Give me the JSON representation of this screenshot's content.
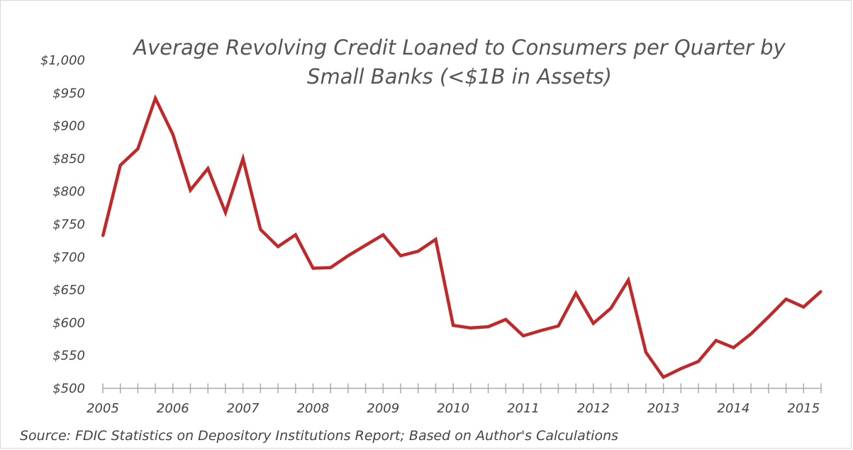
{
  "chart_data": {
    "type": "line",
    "title_lines": [
      "Average Revolving Credit Loaned to Consumers per Quarter by",
      "Small Banks (<$1B in Assets)"
    ],
    "source": "Source: FDIC Statistics on Depository Institutions Report; Based on Author's Calculations",
    "xlabel": "",
    "ylabel": "",
    "ylim": [
      500,
      1000
    ],
    "xlim": [
      2005.0,
      2015.25
    ],
    "y_tick_values": [
      500,
      550,
      600,
      650,
      700,
      750,
      800,
      850,
      900,
      950,
      1000
    ],
    "y_tick_labels": [
      "$500",
      "$550",
      "$600",
      "$650",
      "$700",
      "$750",
      "$800",
      "$850",
      "$900",
      "$950",
      "$1,000"
    ],
    "x_tick_labels": [
      "2005",
      "2006",
      "2007",
      "2008",
      "2009",
      "2010",
      "2011",
      "2012",
      "2013",
      "2014",
      "2015"
    ],
    "x_tick_years": [
      2005,
      2006,
      2007,
      2008,
      2009,
      2010,
      2011,
      2012,
      2013,
      2014,
      2015
    ],
    "grid": false,
    "legend": "none",
    "line_color": "#c0282a",
    "series": [
      {
        "x": [
          "2005 Q1",
          "2005 Q2",
          "2005 Q3",
          "2005 Q4",
          "2006 Q1",
          "2006 Q2",
          "2006 Q3",
          "2006 Q4",
          "2007 Q1",
          "2007 Q2",
          "2007 Q3",
          "2007 Q4",
          "2008 Q1",
          "2008 Q2",
          "2008 Q3",
          "2008 Q4",
          "2009 Q1",
          "2009 Q2",
          "2009 Q3",
          "2009 Q4",
          "2010 Q1",
          "2010 Q2",
          "2010 Q3",
          "2010 Q4",
          "2011 Q1",
          "2011 Q2",
          "2011 Q3",
          "2011 Q4",
          "2012 Q1",
          "2012 Q2",
          "2012 Q3",
          "2012 Q4",
          "2013 Q1",
          "2013 Q2",
          "2013 Q3",
          "2013 Q4",
          "2014 Q1",
          "2014 Q2",
          "2014 Q3",
          "2014 Q4",
          "2015 Q1",
          "2015 Q2"
        ],
        "values": [
          732,
          840,
          865,
          942,
          887,
          802,
          835,
          768,
          850,
          742,
          716,
          734,
          683,
          684,
          702,
          718,
          734,
          702,
          709,
          727,
          596,
          592,
          594,
          605,
          580,
          588,
          595,
          645,
          599,
          622,
          665,
          555,
          517,
          530,
          541,
          573,
          562,
          583,
          609,
          636,
          624,
          648
        ]
      }
    ]
  }
}
